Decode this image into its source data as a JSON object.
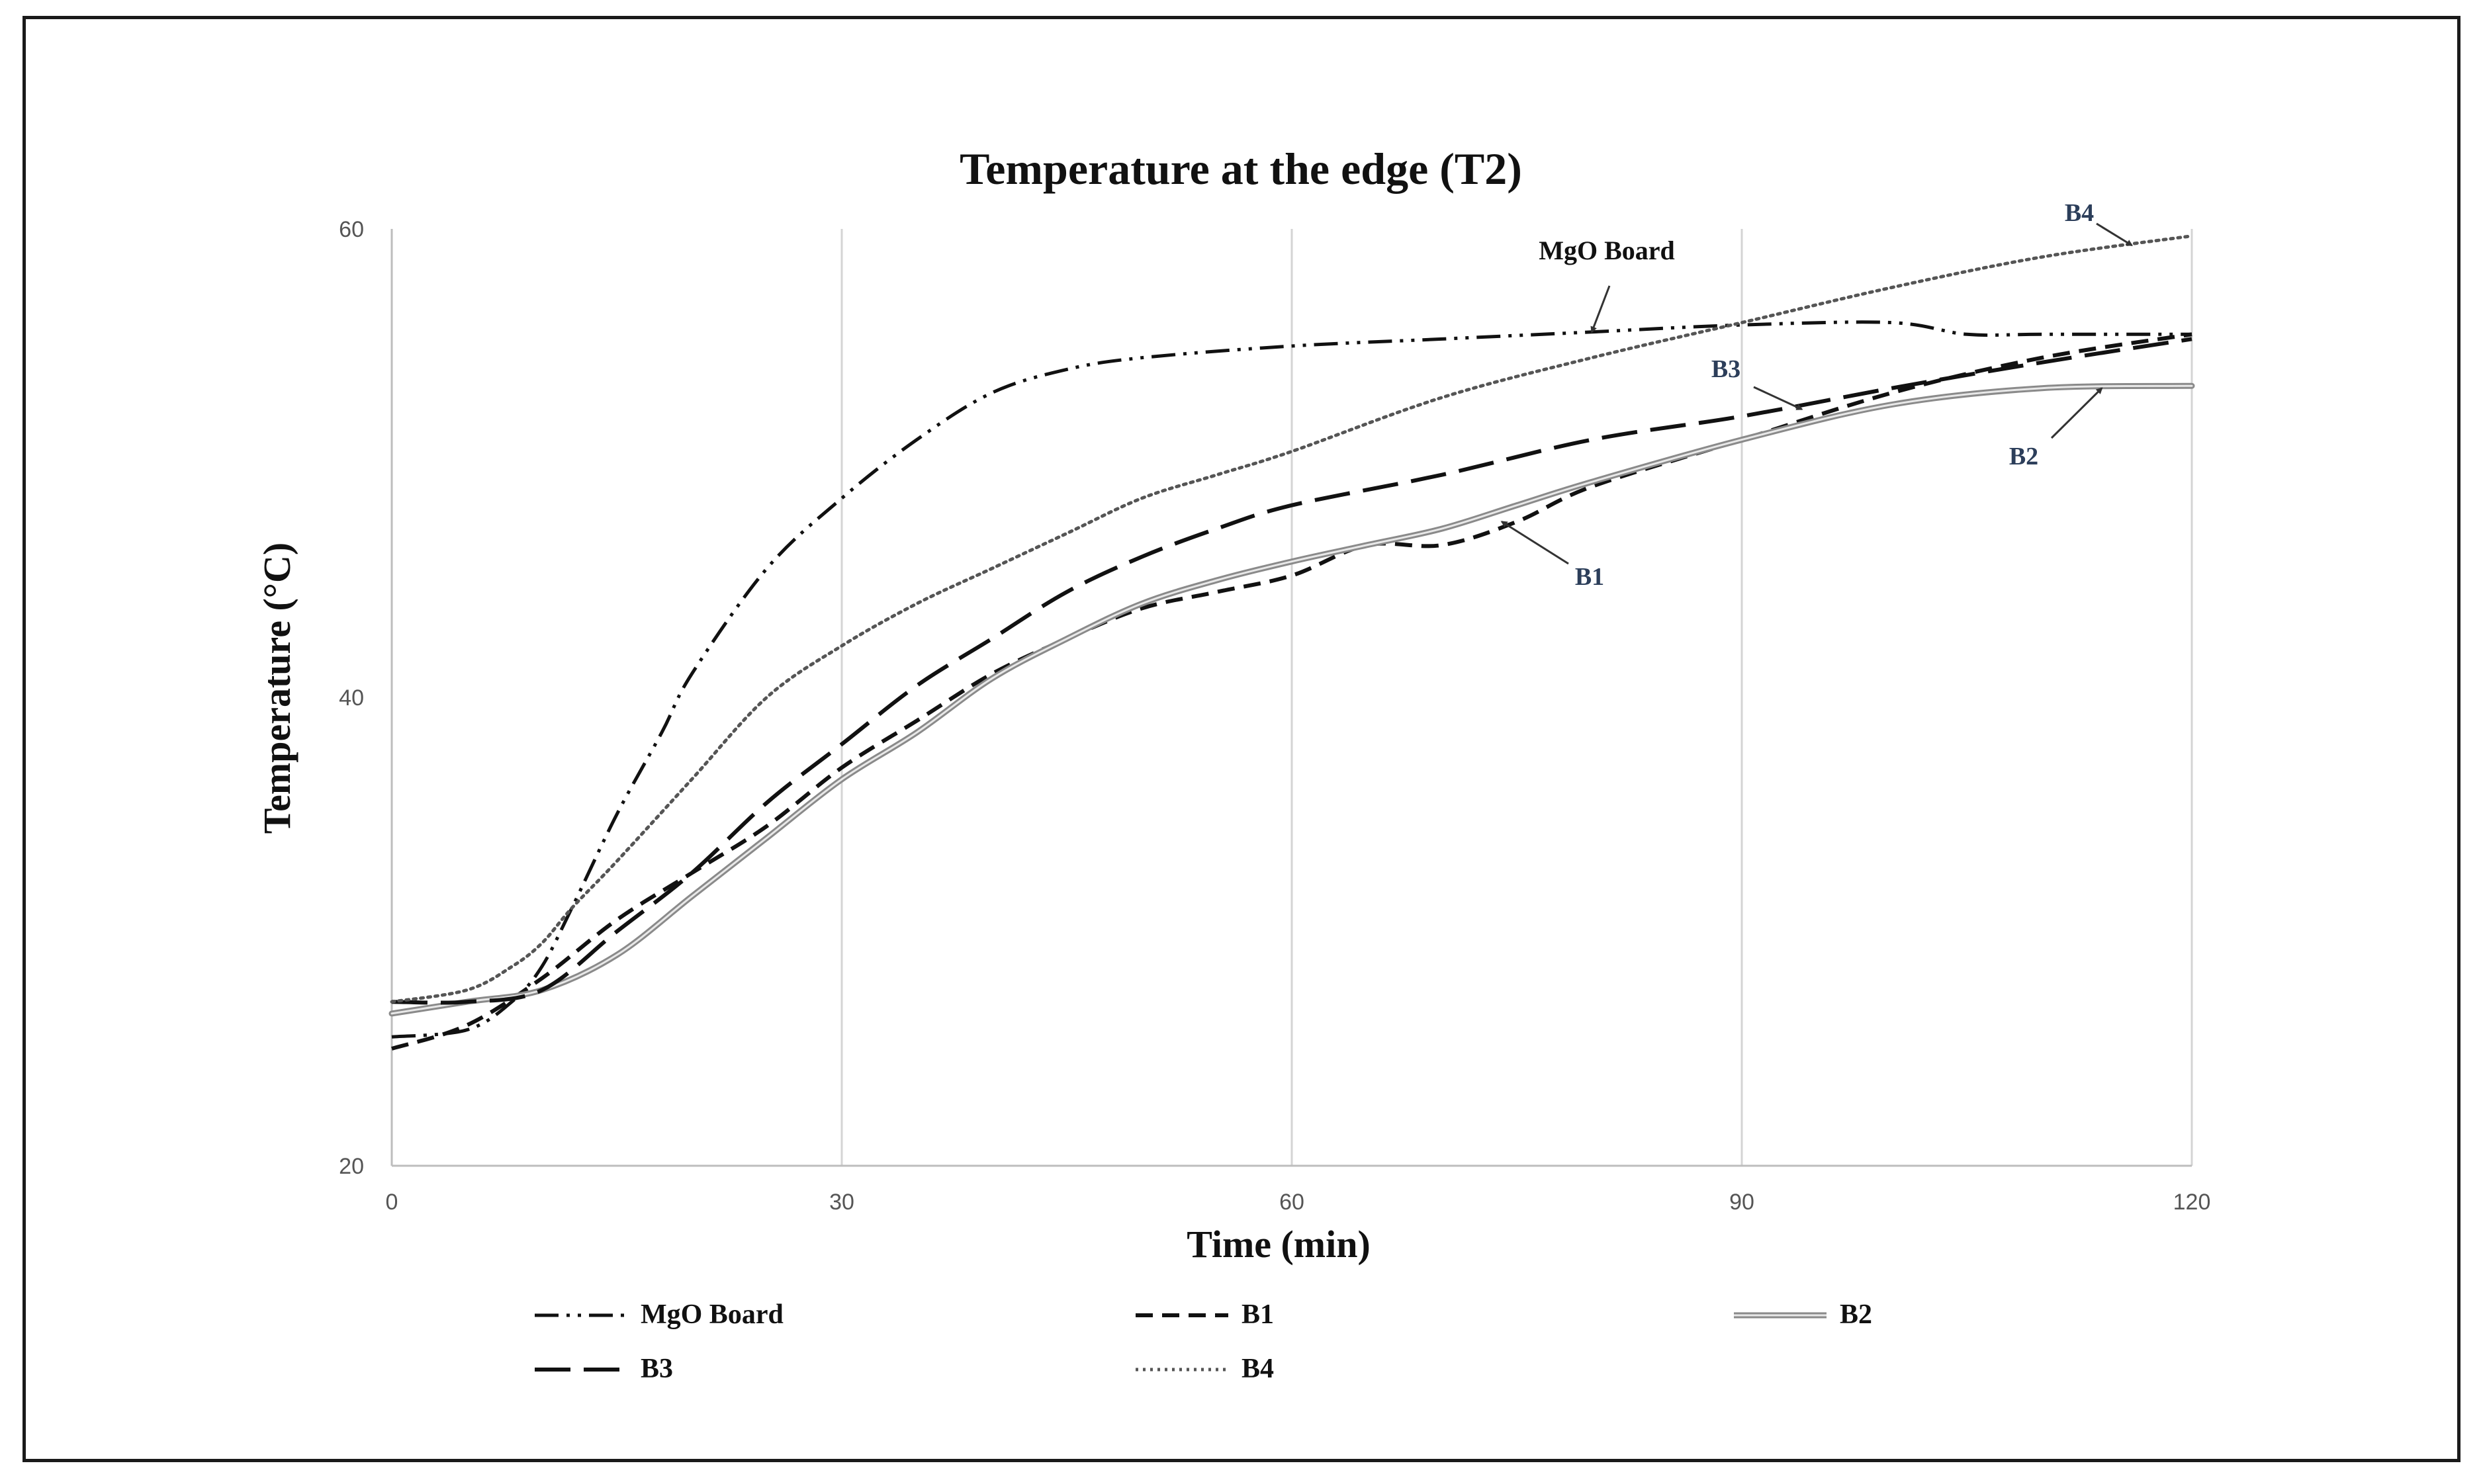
{
  "chart_data": {
    "type": "line",
    "title": "Temperature at the edge (T2)",
    "xlabel": "Time (min)",
    "ylabel": "Temperature (°C)",
    "xlim": [
      0,
      120
    ],
    "ylim": [
      20,
      60
    ],
    "xticks": [
      "0",
      "30",
      "60",
      "90",
      "120"
    ],
    "yticks": [
      "20",
      "40",
      "60"
    ],
    "grid": "vertical",
    "legend_position": "bottom",
    "series": [
      {
        "name": "MgO Board",
        "style": "dash-dot-dot",
        "color": "#111111",
        "x": [
          0,
          5,
          8,
          10,
          12,
          15,
          18,
          20,
          25,
          30,
          35,
          40,
          45,
          50,
          60,
          70,
          80,
          90,
          100,
          105,
          110,
          120
        ],
        "y": [
          25.5,
          25.8,
          27,
          28.5,
          31,
          35,
          38.5,
          41,
          45.5,
          48.5,
          51,
          53,
          54,
          54.5,
          55,
          55.3,
          55.6,
          55.9,
          56,
          55.5,
          55.5,
          55.5
        ]
      },
      {
        "name": "B1",
        "style": "dashed",
        "color": "#111111",
        "x": [
          0,
          5,
          10,
          15,
          20,
          25,
          30,
          35,
          40,
          45,
          50,
          55,
          60,
          65,
          70,
          75,
          80,
          90,
          100,
          110,
          120
        ],
        "y": [
          25.0,
          26.0,
          28.0,
          30.5,
          32.5,
          34.5,
          37.0,
          39.0,
          41.0,
          42.5,
          43.8,
          44.5,
          45.2,
          46.5,
          46.5,
          47.5,
          49.0,
          51.0,
          53.0,
          54.5,
          55.5
        ]
      },
      {
        "name": "B2",
        "style": "solid",
        "color": "#6e6e6e",
        "x": [
          0,
          5,
          10,
          15,
          20,
          25,
          30,
          35,
          40,
          45,
          50,
          55,
          60,
          65,
          70,
          75,
          80,
          90,
          100,
          110,
          120
        ],
        "y": [
          26.5,
          27.0,
          27.5,
          29.0,
          31.5,
          34.0,
          36.5,
          38.5,
          40.8,
          42.5,
          44.0,
          45.0,
          45.8,
          46.5,
          47.2,
          48.2,
          49.2,
          51.0,
          52.5,
          53.2,
          53.3
        ]
      },
      {
        "name": "B3",
        "style": "long-dash",
        "color": "#111111",
        "x": [
          0,
          5,
          10,
          15,
          20,
          25,
          30,
          35,
          40,
          45,
          50,
          55,
          60,
          70,
          80,
          90,
          100,
          110,
          120
        ],
        "y": [
          27.0,
          27.0,
          27.5,
          30.0,
          32.5,
          35.5,
          38.0,
          40.5,
          42.5,
          44.5,
          46.0,
          47.2,
          48.2,
          49.5,
          51.0,
          52.0,
          53.2,
          54.3,
          55.3
        ]
      },
      {
        "name": "B4",
        "style": "dotted",
        "color": "#555555",
        "x": [
          0,
          5,
          8,
          10,
          12,
          15,
          20,
          25,
          30,
          35,
          40,
          45,
          50,
          55,
          60,
          70,
          80,
          90,
          100,
          110,
          120
        ],
        "y": [
          27.0,
          27.5,
          28.5,
          29.5,
          31.0,
          33.0,
          36.5,
          40.0,
          42.2,
          44.0,
          45.5,
          47.0,
          48.5,
          49.5,
          50.5,
          52.8,
          54.5,
          56.0,
          57.5,
          58.8,
          59.7
        ]
      }
    ],
    "annotations": [
      {
        "text": "MgO Board",
        "target_x": 80,
        "target_y": 55.6
      },
      {
        "text": "B1",
        "target_x": 74,
        "target_y": 47.5
      },
      {
        "text": "B2",
        "target_x": 114,
        "target_y": 53.2
      },
      {
        "text": "B3",
        "target_x": 94,
        "target_y": 52.3
      },
      {
        "text": "B4",
        "target_x": 116,
        "target_y": 59.3
      }
    ]
  }
}
